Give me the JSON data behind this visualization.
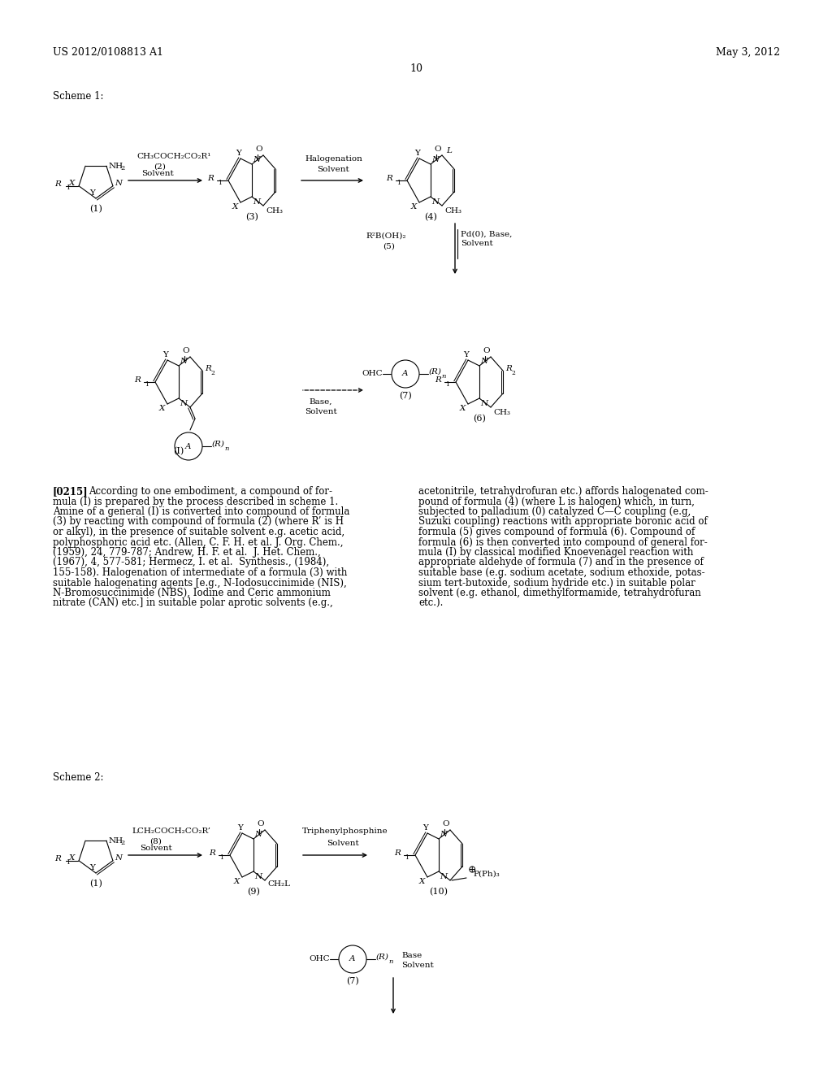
{
  "background_color": "#ffffff",
  "header_left": "US 2012/0108813 A1",
  "header_right": "May 3, 2012",
  "page_number": "10",
  "scheme1_label": "Scheme 1:",
  "scheme2_label": "Scheme 2:",
  "paragraph_label": "[0215]",
  "paragraph_col1_lines": [
    "According to one embodiment, a compound of for-",
    "mula (I) is prepared by the process described in scheme 1.",
    "Amine of a general (I) is converted into compound of formula",
    "(3) by reacting with compound of formula (2) (where R’ is H",
    "or alkyl), in the presence of suitable solvent e.g. acetic acid,",
    "polyphosphoric acid etc. (Allen, C. F. H. et al. J. Org. Chem.,",
    "(1959), 24, 779-787; Andrew, H. F. et al.  J. Het. Chem.,",
    "(1967), 4, 577-581; Hermecz, I. et al.  Synthesis., (1984),",
    "155-158). Halogenation of intermediate of a formula (3) with",
    "suitable halogenating agents [e.g., N-Iodosuccinimide (NIS),",
    "N-Bromosuccinimide (NBS), Iodine and Ceric ammonium",
    "nitrate (CAN) etc.] in suitable polar aprotic solvents (e.g.,"
  ],
  "paragraph_col2_lines": [
    "acetonitrile, tetrahydrofuran etc.) affords halogenated com-",
    "pound of formula (4) (where L is halogen) which, in turn,",
    "subjected to palladium (0) catalyzed C—C coupling (e.g,",
    "Suzuki coupling) reactions with appropriate boronic acid of",
    "formula (5) gives compound of formula (6). Compound of",
    "formula (6) is then converted into compound of general for-",
    "mula (I) by classical modified Knoevenagel reaction with",
    "appropriate aldehyde of formula (7) and in the presence of",
    "suitable base (e.g. sodium acetate, sodium ethoxide, potas-",
    "sium tert-butoxide, sodium hydride etc.) in suitable polar",
    "solvent (e.g. ethanol, dimethylformamide, tetrahydrofuran",
    "etc.)."
  ]
}
